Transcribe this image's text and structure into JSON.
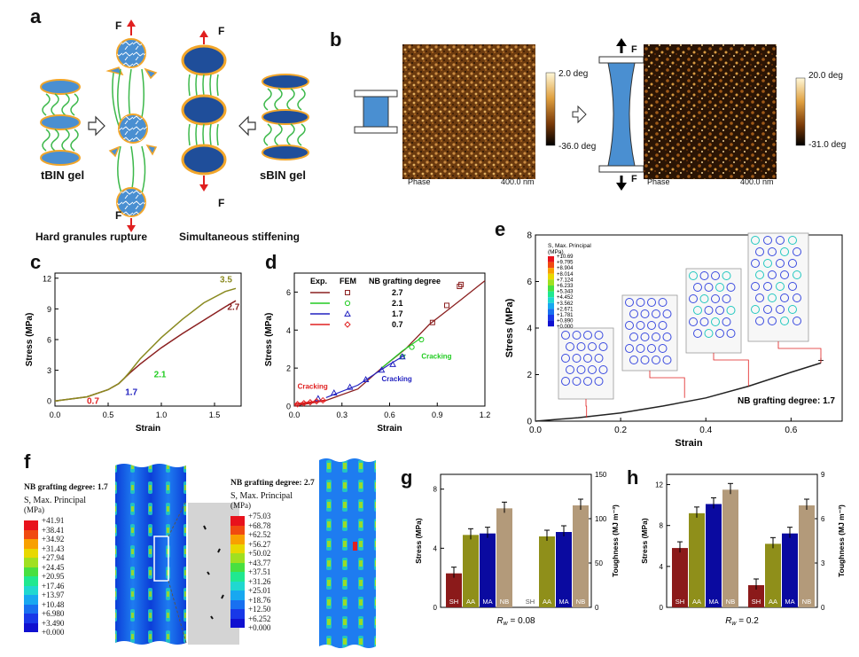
{
  "panels": {
    "a": "a",
    "b": "b",
    "c": "c",
    "d": "d",
    "e": "e",
    "f": "f",
    "g": "g",
    "h": "h"
  },
  "panel_a": {
    "force": "F",
    "left_gel": "tBIN gel",
    "right_gel": "sBIN gel",
    "caption_left": "Hard granules rupture",
    "caption_right": "Simultaneous stiffening"
  },
  "panel_b": {
    "force": "F",
    "img1": {
      "scale_top": "2.0 deg",
      "scale_bottom": "-36.0 deg",
      "phase": "Phase",
      "size": "400.0 nm"
    },
    "img2": {
      "scale_top": "20.0 deg",
      "scale_bottom": "-31.0 deg",
      "phase": "Phase",
      "size": "400.0 nm"
    }
  },
  "panel_c": {
    "ylabel": "Stress (MPa)",
    "xlabel": "Strain",
    "xticks": [
      "0.0",
      "0.5",
      "1.0",
      "1.5"
    ],
    "yticks": [
      "0",
      "3",
      "6",
      "9",
      "12"
    ],
    "labels": [
      "3.5",
      "2.7",
      "2.1",
      "1.7",
      "0.7"
    ]
  },
  "panel_d": {
    "ylabel": "Stress (MPa)",
    "xlabel": "Strain",
    "xticks": [
      "0.0",
      "0.3",
      "0.6",
      "0.9",
      "1.2"
    ],
    "yticks": [
      "0",
      "2",
      "4",
      "6"
    ],
    "legend_head": [
      "Exp.",
      "FEM",
      "NB grafting degree"
    ],
    "legend_vals": [
      "2.7",
      "2.1",
      "1.7",
      "0.7"
    ],
    "annotations": [
      "Cracking",
      "Cracking",
      "Cracking"
    ]
  },
  "panel_e": {
    "ylabel": "Stress (MPa)",
    "xlabel": "Strain",
    "xticks": [
      "0.0",
      "0.2",
      "0.4",
      "0.6"
    ],
    "yticks": [
      "0",
      "2",
      "4",
      "6",
      "8"
    ],
    "note": "NB grafting degree: 1.7",
    "legend_title": "S, Max. Principal",
    "legend_unit": "(MPa)",
    "legend_vals": [
      "+10.69",
      "+9.795",
      "+8.904",
      "+8.014",
      "+7.124",
      "+6.233",
      "+5.343",
      "+4.452",
      "+3.562",
      "+2.671",
      "+1.781",
      "+0.890",
      "+0.000"
    ]
  },
  "panel_f": {
    "left": {
      "title": "NB grafting degree: 1.7",
      "legend_title": "S, Max. Principal",
      "legend_unit": "(MPa)",
      "vals": [
        "+41.91",
        "+38.41",
        "+34.92",
        "+31.43",
        "+27.94",
        "+24.45",
        "+20.95",
        "+17.46",
        "+13.97",
        "+10.48",
        "+6.980",
        "+3.490",
        "+0.000"
      ]
    },
    "right": {
      "title": "NB grafting degree: 2.7",
      "legend_title": "S, Max. Principal",
      "legend_unit": "(MPa)",
      "vals": [
        "+75.03",
        "+68.78",
        "+62.52",
        "+56.27",
        "+50.02",
        "+43.77",
        "+37.51",
        "+31.26",
        "+25.01",
        "+18.76",
        "+12.50",
        "+6.252",
        "+0.000"
      ]
    }
  },
  "panel_g": {
    "ylabel": "Stress (MPa)",
    "y2label": "Toughness (MJ m⁻³)",
    "yticks": [
      "0",
      "4",
      "8"
    ],
    "y2ticks": [
      "0",
      "50",
      "100",
      "150"
    ],
    "cats": [
      "SH",
      "AA",
      "MA",
      "NB"
    ],
    "caption_pre": "R",
    "caption_sub": "w",
    "caption_val": " = 0.08"
  },
  "panel_h": {
    "ylabel": "Stress (MPa)",
    "y2label": "Toughness (MJ m⁻³)",
    "yticks": [
      "0",
      "4",
      "8",
      "12"
    ],
    "y2ticks": [
      "0",
      "3",
      "6",
      "9"
    ],
    "cats": [
      "SH",
      "AA",
      "MA",
      "NB"
    ],
    "caption_pre": "R",
    "caption_sub": "w",
    "caption_val": " = 0.2"
  },
  "colors": {
    "sh": "#8b1a1a",
    "aa": "#8f8f1a",
    "ma": "#0a0aa0",
    "nb": "#b39a7a",
    "gel": "#1f4e9a",
    "chain": "#3cb84a",
    "shell": "#f2a62a",
    "red": "#e02020",
    "blue": "#2222c0",
    "green": "#22cc22",
    "olive": "#8a8a20",
    "maroon": "#8b2020"
  },
  "chart_data": [
    {
      "type": "line",
      "title": "",
      "xlabel": "Strain",
      "ylabel": "Stress (MPa)",
      "xlim": [
        0,
        1.75
      ],
      "ylim": [
        -0.5,
        12.5
      ],
      "series": [
        {
          "name": "2.7",
          "x": [
            0,
            0.3,
            0.5,
            0.6,
            0.65,
            0.7,
            0.8,
            1.0,
            1.2,
            1.4,
            1.6,
            1.7
          ],
          "y": [
            0,
            0.4,
            1.1,
            1.7,
            2.2,
            2.7,
            3.6,
            5.2,
            6.6,
            7.9,
            9.2,
            9.8
          ]
        },
        {
          "name": "3.5",
          "x": [
            0,
            0.3,
            0.5,
            0.6,
            0.65,
            0.7,
            0.8,
            1.0,
            1.2,
            1.4,
            1.6,
            1.7
          ],
          "y": [
            0,
            0.4,
            1.1,
            1.7,
            2.2,
            2.8,
            4.1,
            6.2,
            8.0,
            9.6,
            10.7,
            11.0
          ]
        }
      ]
    },
    {
      "type": "line",
      "title": "",
      "xlabel": "Strain",
      "ylabel": "Stress (MPa)",
      "xlim": [
        0,
        1.2
      ],
      "ylim": [
        0,
        7
      ],
      "series": [
        {
          "name": "2.7",
          "x": [
            0.0,
            0.2,
            0.4,
            0.55,
            0.7,
            0.85,
            1.05,
            1.2
          ],
          "y": [
            0.0,
            0.3,
            0.9,
            2.0,
            3.0,
            4.3,
            5.6,
            6.6
          ]
        },
        {
          "name": "2.7 FEM",
          "x": [
            0.87,
            0.96,
            1.04,
            1.05
          ],
          "y": [
            4.4,
            5.3,
            6.3,
            6.4
          ]
        },
        {
          "name": "2.1 FEM",
          "x": [
            0.68,
            0.74,
            0.8
          ],
          "y": [
            2.6,
            3.1,
            3.5
          ]
        },
        {
          "name": "1.7 FEM",
          "x": [
            0.15,
            0.25,
            0.35,
            0.45,
            0.55,
            0.62,
            0.68
          ],
          "y": [
            0.4,
            0.7,
            1.0,
            1.4,
            1.9,
            2.2,
            2.6
          ]
        },
        {
          "name": "0.7 FEM",
          "x": [
            0.02,
            0.06,
            0.1,
            0.14,
            0.18
          ],
          "y": [
            0.1,
            0.15,
            0.2,
            0.25,
            0.3
          ]
        }
      ]
    },
    {
      "type": "line",
      "title": "",
      "xlabel": "Strain",
      "ylabel": "Stress (MPa)",
      "xlim": [
        0,
        0.72
      ],
      "ylim": [
        0,
        8
      ],
      "series": [
        {
          "name": "NB grafting degree: 1.7",
          "x": [
            0,
            0.1,
            0.2,
            0.3,
            0.4,
            0.5,
            0.6,
            0.67
          ],
          "y": [
            0,
            0.15,
            0.35,
            0.65,
            1.0,
            1.5,
            2.1,
            2.5
          ]
        }
      ]
    },
    {
      "type": "bar",
      "title": "",
      "ylabel": "Stress (MPa)",
      "y2label": "Toughness (MJ m⁻³)",
      "categories": [
        "SH",
        "AA",
        "MA",
        "NB"
      ],
      "series": [
        {
          "name": "Stress",
          "values": [
            2.3,
            4.9,
            5.0,
            6.7
          ]
        },
        {
          "name": "Toughness",
          "values": [
            0,
            80,
            85,
            115
          ]
        }
      ]
    },
    {
      "type": "bar",
      "title": "",
      "ylabel": "Stress (MPa)",
      "y2label": "Toughness (MJ m⁻³)",
      "categories": [
        "SH",
        "AA",
        "MA",
        "NB"
      ],
      "series": [
        {
          "name": "Stress",
          "values": [
            5.8,
            9.2,
            10.1,
            11.5
          ]
        },
        {
          "name": "Toughness",
          "values": [
            1.5,
            4.3,
            5.0,
            6.9
          ]
        }
      ]
    }
  ]
}
